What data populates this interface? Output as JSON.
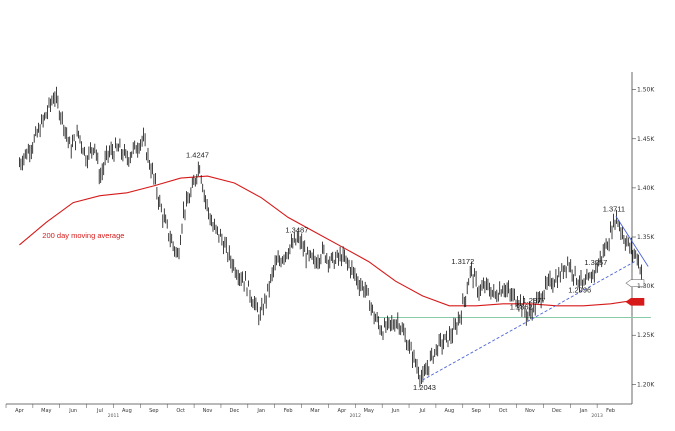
{
  "chart_data": {
    "type": "line",
    "subtype": "candlestick-ohlc",
    "title": "",
    "xlabel": "",
    "ylabel": "",
    "ylim": [
      1.18,
      1.52
    ],
    "y_ticks": [
      {
        "label": "1.50K",
        "value": 1.5
      },
      {
        "label": "1.45K",
        "value": 1.45
      },
      {
        "label": "1.40K",
        "value": 1.4
      },
      {
        "label": "1.35K",
        "value": 1.35
      },
      {
        "label": "1.30K",
        "value": 1.3
      },
      {
        "label": "1.25K",
        "value": 1.25
      },
      {
        "label": "1.20K",
        "value": 1.2
      }
    ],
    "x_ticks": [
      "Apr",
      "May",
      "Jun",
      "Jul",
      "Aug",
      "Sep",
      "Oct",
      "Nov",
      "Dec",
      "Jan",
      "Feb",
      "Mar",
      "Apr",
      "May",
      "Jun",
      "Jul",
      "Aug",
      "Sep",
      "Oct",
      "Nov",
      "Dec",
      "Jan",
      "Feb"
    ],
    "year_labels": [
      {
        "label": "2011",
        "month_index": 4
      },
      {
        "label": "2012",
        "month_index": 13
      },
      {
        "label": "2013",
        "month_index": 22
      }
    ],
    "price_path": [
      [
        0,
        1.425
      ],
      [
        0.5,
        1.445
      ],
      [
        1.0,
        1.475
      ],
      [
        1.3,
        1.495
      ],
      [
        1.6,
        1.47
      ],
      [
        1.9,
        1.44
      ],
      [
        2.2,
        1.455
      ],
      [
        2.5,
        1.43
      ],
      [
        2.8,
        1.445
      ],
      [
        3.0,
        1.41
      ],
      [
        3.3,
        1.435
      ],
      [
        3.7,
        1.44
      ],
      [
        4.0,
        1.43
      ],
      [
        4.3,
        1.44
      ],
      [
        4.6,
        1.45
      ],
      [
        5.0,
        1.41
      ],
      [
        5.3,
        1.375
      ],
      [
        5.6,
        1.35
      ],
      [
        5.9,
        1.33
      ],
      [
        6.1,
        1.375
      ],
      [
        6.4,
        1.395
      ],
      [
        6.7,
        1.4247
      ],
      [
        6.9,
        1.39
      ],
      [
        7.2,
        1.36
      ],
      [
        7.5,
        1.35
      ],
      [
        7.8,
        1.33
      ],
      [
        8.1,
        1.315
      ],
      [
        8.4,
        1.305
      ],
      [
        8.7,
        1.285
      ],
      [
        8.95,
        1.268
      ],
      [
        9.2,
        1.29
      ],
      [
        9.5,
        1.32
      ],
      [
        9.8,
        1.33
      ],
      [
        10.1,
        1.34
      ],
      [
        10.4,
        1.3487
      ],
      [
        10.7,
        1.33
      ],
      [
        11.0,
        1.325
      ],
      [
        11.3,
        1.335
      ],
      [
        11.6,
        1.325
      ],
      [
        12.0,
        1.33
      ],
      [
        12.3,
        1.32
      ],
      [
        12.6,
        1.305
      ],
      [
        12.9,
        1.295
      ],
      [
        13.2,
        1.27
      ],
      [
        13.5,
        1.255
      ],
      [
        13.8,
        1.26
      ],
      [
        14.1,
        1.265
      ],
      [
        14.4,
        1.245
      ],
      [
        14.7,
        1.225
      ],
      [
        15.0,
        1.2043
      ],
      [
        15.3,
        1.225
      ],
      [
        15.6,
        1.24
      ],
      [
        15.9,
        1.245
      ],
      [
        16.2,
        1.255
      ],
      [
        16.4,
        1.27
      ],
      [
        16.6,
        1.29
      ],
      [
        16.8,
        1.3172
      ],
      [
        17.1,
        1.295
      ],
      [
        17.4,
        1.3
      ],
      [
        17.7,
        1.29
      ],
      [
        18.0,
        1.3
      ],
      [
        18.3,
        1.29
      ],
      [
        18.6,
        1.2862
      ],
      [
        18.9,
        1.27
      ],
      [
        19.2,
        1.28
      ],
      [
        19.5,
        1.295
      ],
      [
        19.8,
        1.305
      ],
      [
        20.1,
        1.31
      ],
      [
        20.4,
        1.325
      ],
      [
        20.7,
        1.31
      ],
      [
        21.0,
        1.2996
      ],
      [
        21.3,
        1.31
      ],
      [
        21.6,
        1.3257
      ],
      [
        21.9,
        1.345
      ],
      [
        22.2,
        1.3711
      ],
      [
        22.5,
        1.35
      ],
      [
        22.8,
        1.335
      ],
      [
        23.0,
        1.33
      ],
      [
        23.2,
        1.31
      ]
    ],
    "series": [
      {
        "name": "200 day moving average",
        "color": "#d61a1a",
        "points": [
          [
            0,
            1.342
          ],
          [
            1,
            1.365
          ],
          [
            2,
            1.385
          ],
          [
            3,
            1.392
          ],
          [
            4,
            1.395
          ],
          [
            5,
            1.402
          ],
          [
            6,
            1.41
          ],
          [
            7,
            1.412
          ],
          [
            8,
            1.405
          ],
          [
            9,
            1.39
          ],
          [
            10,
            1.37
          ],
          [
            11,
            1.355
          ],
          [
            12,
            1.34
          ],
          [
            13,
            1.325
          ],
          [
            14,
            1.305
          ],
          [
            15,
            1.29
          ],
          [
            16,
            1.28
          ],
          [
            17,
            1.28
          ],
          [
            18,
            1.282
          ],
          [
            19,
            1.282
          ],
          [
            20,
            1.28
          ],
          [
            21,
            1.28
          ],
          [
            22,
            1.282
          ],
          [
            23,
            1.286
          ]
        ]
      }
    ],
    "annotations": [
      {
        "text": "1.4247",
        "x": 6.7,
        "y": 1.4247
      },
      {
        "text": "1.3487",
        "x": 10.4,
        "y": 1.3487
      },
      {
        "text": "1.2043",
        "x": 15.0,
        "y": 1.2043
      },
      {
        "text": "1.3172",
        "x": 16.8,
        "y": 1.3172
      },
      {
        "text": "1.2877",
        "x": 19.3,
        "y": 1.2877
      },
      {
        "text": "1.2862",
        "x": 18.6,
        "y": 1.2862
      },
      {
        "text": "1.2996",
        "x": 21.0,
        "y": 1.2996
      },
      {
        "text": "1.3257",
        "x": 21.6,
        "y": 1.3257
      },
      {
        "text": "1.3711",
        "x": 22.2,
        "y": 1.3711
      }
    ],
    "support_line": {
      "y": 1.268,
      "x_start": 13.3,
      "x_end": 23.5,
      "color": "#88c9a8"
    },
    "trendlines": [
      {
        "from": [
          15.0,
          1.2043
        ],
        "to": [
          22.9,
          1.325
        ],
        "style": "dashed",
        "color": "#4a63d8"
      },
      {
        "from": [
          22.2,
          1.3711
        ],
        "to": [
          23.4,
          1.32
        ],
        "style": "solid",
        "color": "#4a63d8"
      }
    ],
    "ma_label": "200 day moving average",
    "right_markers": [
      {
        "y": 1.303,
        "color": "#ffffff",
        "border": "#777777"
      },
      {
        "y": 1.284,
        "color": "#d61a1a",
        "border": "#d61a1a"
      }
    ]
  }
}
